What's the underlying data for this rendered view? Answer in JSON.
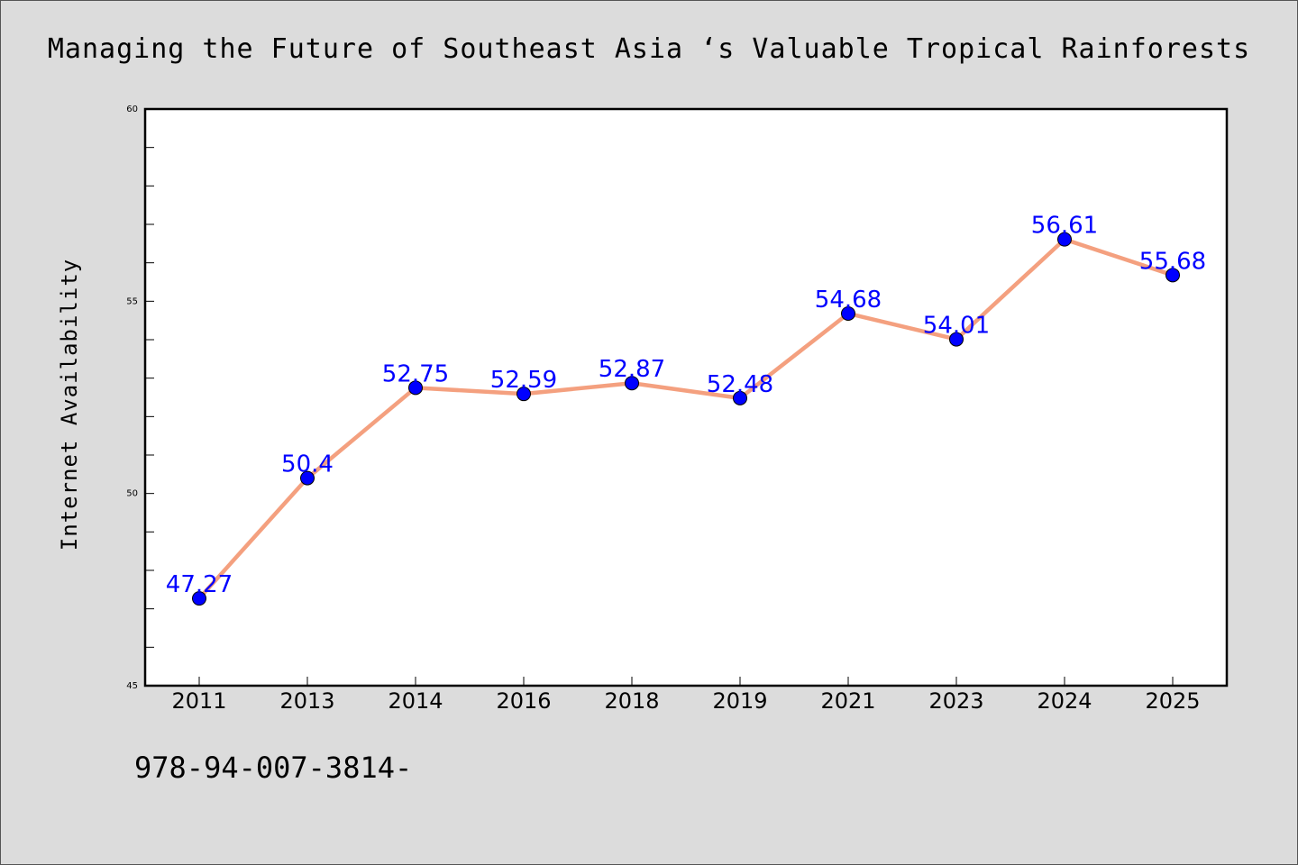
{
  "chart_data": {
    "type": "line",
    "title": "Managing the Future of Southeast Asia ‘s Valuable Tropical Rainforests",
    "xlabel": "",
    "ylabel": "Internet Availability",
    "categories": [
      "2011",
      "2013",
      "2014",
      "2016",
      "2018",
      "2019",
      "2021",
      "2023",
      "2024",
      "2025"
    ],
    "series": [
      {
        "values": [
          47.27,
          50.4,
          52.75,
          52.59,
          52.87,
          52.48,
          54.68,
          54.01,
          56.61,
          55.68
        ],
        "labels": [
          "47.27",
          "50.4",
          "52.75",
          "52.59",
          "52.87",
          "52.48",
          "54.68",
          "54.01",
          "56.61",
          "55.68"
        ]
      }
    ],
    "ylim": [
      45,
      60
    ],
    "yticks": [
      "45",
      "50",
      "55",
      "60"
    ],
    "grid": false,
    "line_color": "#f4a07f",
    "marker_color": "#0000ff",
    "label_color": "#0000ff"
  },
  "footer": {
    "code": "978-94-007-3814-"
  }
}
